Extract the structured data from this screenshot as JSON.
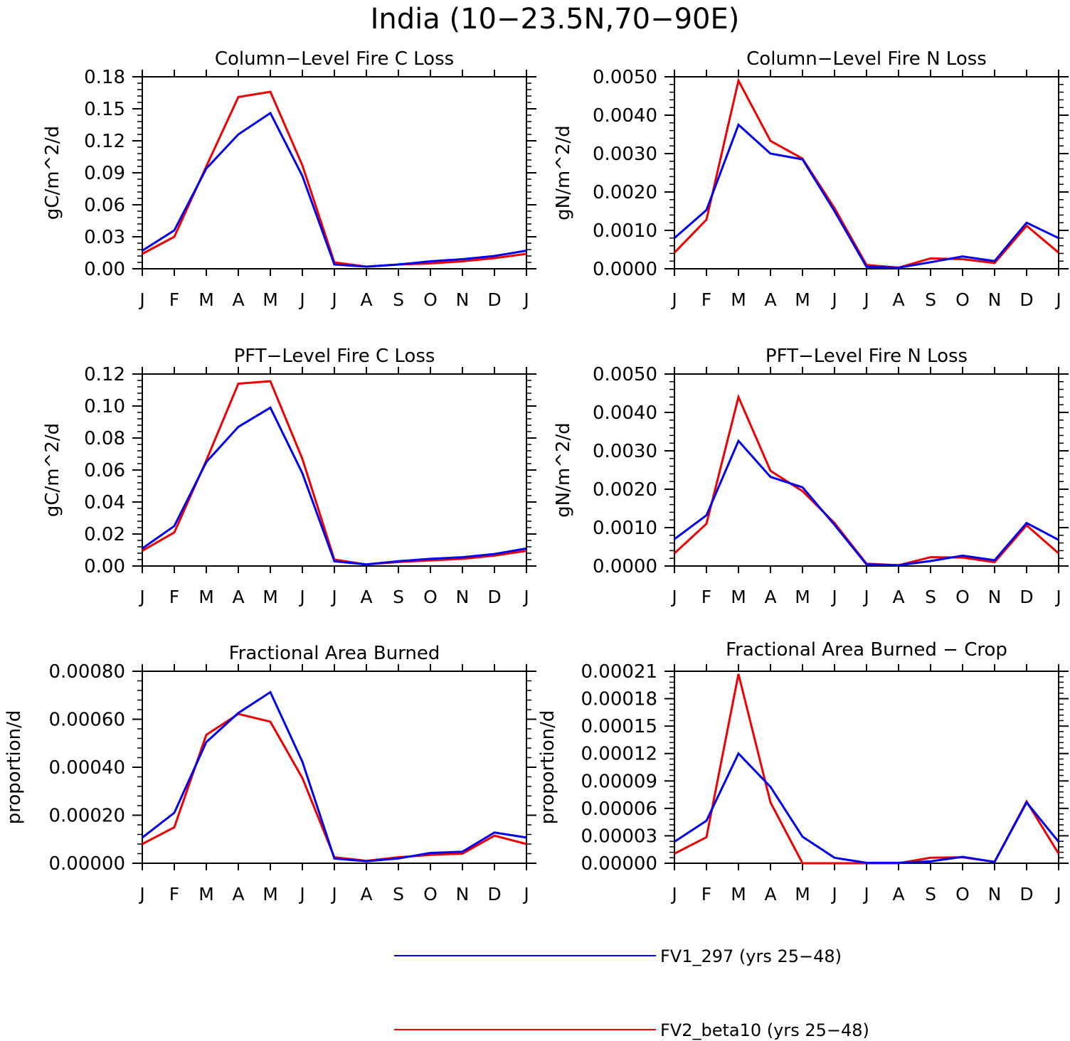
{
  "figure": {
    "title": "India (10−23.5N,70−90E)"
  },
  "legend": {
    "placement": "bottom-center",
    "entries": [
      {
        "name": "FV1_297 (yrs 25−48)",
        "color": "#0000ee"
      },
      {
        "name": "FV2_beta10 (yrs 25−48)",
        "color": "#ee0000"
      }
    ]
  },
  "chart_data": [
    {
      "type": "line",
      "title": "Column−Level Fire C Loss",
      "xlabel": "",
      "ylabel": "gC/m^2/d",
      "categories": [
        "J",
        "F",
        "M",
        "A",
        "M",
        "J",
        "J",
        "A",
        "S",
        "O",
        "N",
        "D",
        "J"
      ],
      "ylim": [
        0,
        0.18
      ],
      "yticks": [
        "0.00",
        "0.03",
        "0.06",
        "0.09",
        "0.12",
        "0.15",
        "0.18"
      ],
      "series": [
        {
          "name": "FV1_297 (yrs 25−48)",
          "color": "#0000ee",
          "values": [
            0.017,
            0.036,
            0.094,
            0.126,
            0.146,
            0.087,
            0.004,
            0.002,
            0.004,
            0.007,
            0.009,
            0.012,
            0.017
          ]
        },
        {
          "name": "FV2_beta10 (yrs 25−48)",
          "color": "#ee0000",
          "values": [
            0.014,
            0.03,
            0.096,
            0.161,
            0.166,
            0.097,
            0.006,
            0.002,
            0.004,
            0.005,
            0.007,
            0.01,
            0.014
          ]
        }
      ]
    },
    {
      "type": "line",
      "title": "Column−Level Fire N Loss",
      "xlabel": "",
      "ylabel": "gN/m^2/d",
      "categories": [
        "J",
        "F",
        "M",
        "A",
        "M",
        "J",
        "J",
        "A",
        "S",
        "O",
        "N",
        "D",
        "J"
      ],
      "ylim": [
        0,
        0.005
      ],
      "yticks": [
        "0.0000",
        "0.0010",
        "0.0020",
        "0.0030",
        "0.0040",
        "0.0050"
      ],
      "series": [
        {
          "name": "FV1_297 (yrs 25−48)",
          "color": "#0000ee",
          "values": [
            0.0008,
            0.00153,
            0.00375,
            0.003,
            0.00285,
            0.0015,
            5e-05,
            3e-05,
            0.00017,
            0.00032,
            0.0002,
            0.0012,
            0.0008
          ]
        },
        {
          "name": "FV2_beta10 (yrs 25−48)",
          "color": "#ee0000",
          "values": [
            0.00042,
            0.00128,
            0.0049,
            0.00333,
            0.00287,
            0.00158,
            0.0001,
            3e-05,
            0.00027,
            0.00025,
            0.00015,
            0.00112,
            0.00042
          ]
        }
      ]
    },
    {
      "type": "line",
      "title": "PFT−Level Fire C Loss",
      "xlabel": "",
      "ylabel": "gC/m^2/d",
      "categories": [
        "J",
        "F",
        "M",
        "A",
        "M",
        "J",
        "J",
        "A",
        "S",
        "O",
        "N",
        "D",
        "J"
      ],
      "ylim": [
        0,
        0.12
      ],
      "yticks": [
        "0.00",
        "0.02",
        "0.04",
        "0.06",
        "0.08",
        "0.10",
        "0.12"
      ],
      "series": [
        {
          "name": "FV1_297 (yrs 25−48)",
          "color": "#0000ee",
          "values": [
            0.011,
            0.025,
            0.065,
            0.087,
            0.099,
            0.058,
            0.003,
            0.001,
            0.003,
            0.0045,
            0.0055,
            0.0075,
            0.011
          ]
        },
        {
          "name": "FV2_beta10 (yrs 25−48)",
          "color": "#ee0000",
          "values": [
            0.0095,
            0.021,
            0.066,
            0.114,
            0.1155,
            0.067,
            0.004,
            0.001,
            0.0025,
            0.0035,
            0.0045,
            0.0065,
            0.0095
          ]
        }
      ]
    },
    {
      "type": "line",
      "title": "PFT−Level Fire N Loss",
      "xlabel": "",
      "ylabel": "gN/m^2/d",
      "categories": [
        "J",
        "F",
        "M",
        "A",
        "M",
        "J",
        "J",
        "A",
        "S",
        "O",
        "N",
        "D",
        "J"
      ],
      "ylim": [
        0,
        0.005
      ],
      "yticks": [
        "0.0000",
        "0.0010",
        "0.0020",
        "0.0030",
        "0.0040",
        "0.0050"
      ],
      "series": [
        {
          "name": "FV1_297 (yrs 25−48)",
          "color": "#0000ee",
          "values": [
            0.0007,
            0.00132,
            0.00326,
            0.00232,
            0.00205,
            0.00107,
            4e-05,
            2e-05,
            0.00013,
            0.00027,
            0.00015,
            0.00112,
            0.00068
          ]
        },
        {
          "name": "FV2_beta10 (yrs 25−48)",
          "color": "#ee0000",
          "values": [
            0.00033,
            0.0011,
            0.0044,
            0.00248,
            0.00195,
            0.00112,
            6e-05,
            2e-05,
            0.00023,
            0.00022,
            0.0001,
            0.00106,
            0.00033
          ]
        }
      ]
    },
    {
      "type": "line",
      "title": "Fractional Area Burned",
      "xlabel": "",
      "ylabel": "proportion/d",
      "categories": [
        "J",
        "F",
        "M",
        "A",
        "M",
        "J",
        "J",
        "A",
        "S",
        "O",
        "N",
        "D",
        "J"
      ],
      "ylim": [
        0,
        0.0008
      ],
      "yticks": [
        "0.00000",
        "0.00020",
        "0.00040",
        "0.00060",
        "0.00080"
      ],
      "series": [
        {
          "name": "FV1_297 (yrs 25−48)",
          "color": "#0000ee",
          "values": [
            0.000107,
            0.00021,
            0.000505,
            0.000626,
            0.000713,
            0.000423,
            2e-05,
            8e-06,
            2e-05,
            4.3e-05,
            4.8e-05,
            0.000128,
            0.000107
          ]
        },
        {
          "name": "FV2_beta10 (yrs 25−48)",
          "color": "#ee0000",
          "values": [
            8e-05,
            0.00015,
            0.000535,
            0.000622,
            0.00059,
            0.000355,
            2.5e-05,
            1e-05,
            2.5e-05,
            3.5e-05,
            4e-05,
            0.000115,
            8e-05
          ]
        }
      ]
    },
    {
      "type": "line",
      "title": "Fractional Area Burned − Crop",
      "xlabel": "",
      "ylabel": "proportion/d",
      "categories": [
        "J",
        "F",
        "M",
        "A",
        "M",
        "J",
        "J",
        "A",
        "S",
        "O",
        "N",
        "D",
        "J"
      ],
      "ylim": [
        0,
        0.00021
      ],
      "yticks": [
        "0.00000",
        "0.00003",
        "0.00006",
        "0.00009",
        "0.00012",
        "0.00015",
        "0.00018",
        "0.00021"
      ],
      "series": [
        {
          "name": "FV1_297 (yrs 25−48)",
          "color": "#0000ee",
          "values": [
            2.35e-05,
            4.65e-05,
            0.00012,
            8.35e-05,
            2.9e-05,
            6e-06,
            5e-07,
            5e-07,
            2e-06,
            7e-06,
            1.5e-06,
            6.65e-05,
            2.35e-05
          ]
        },
        {
          "name": "FV2_beta10 (yrs 25−48)",
          "color": "#ee0000",
          "values": [
            1.05e-05,
            2.85e-05,
            0.000207,
            6.65e-05,
            0.0,
            0.0,
            0.0,
            0.0,
            6e-06,
            6.5e-06,
            1.5e-06,
            6.75e-05,
            1.05e-05
          ]
        }
      ]
    }
  ]
}
